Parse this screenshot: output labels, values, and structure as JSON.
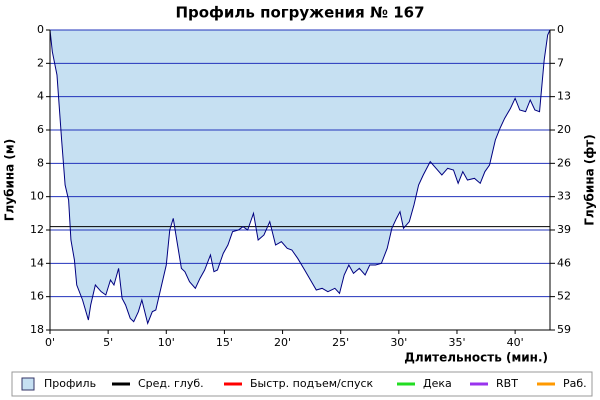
{
  "chart_data": {
    "type": "area",
    "title": "Профиль погружения № 167",
    "y_label": "Глубина (м)",
    "y2_label": "Глубина (фт)",
    "x_label": "Длительность (мин.)",
    "xlim": [
      0,
      43
    ],
    "xticks": [
      {
        "value": 0,
        "label": "0'"
      },
      {
        "value": 5,
        "label": "5'"
      },
      {
        "value": 10,
        "label": "10'"
      },
      {
        "value": 15,
        "label": "15'"
      },
      {
        "value": 20,
        "label": "20'"
      },
      {
        "value": 25,
        "label": "25'"
      },
      {
        "value": 30,
        "label": "30'"
      },
      {
        "value": 35,
        "label": "35'"
      },
      {
        "value": 40,
        "label": "40'"
      }
    ],
    "ylim": [
      0,
      18
    ],
    "yticks": [
      0,
      2,
      4,
      6,
      8,
      10,
      12,
      14,
      16,
      18
    ],
    "y_inverted": true,
    "y2lim": [
      0,
      59.06
    ],
    "y2ticks": [
      {
        "value": 0,
        "label": "0"
      },
      {
        "value": 6.56,
        "label": "7"
      },
      {
        "value": 13.12,
        "label": "13"
      },
      {
        "value": 19.69,
        "label": "20"
      },
      {
        "value": 26.25,
        "label": "26"
      },
      {
        "value": 32.81,
        "label": "33"
      },
      {
        "value": 39.37,
        "label": "39"
      },
      {
        "value": 45.93,
        "label": "46"
      },
      {
        "value": 52.49,
        "label": "52"
      },
      {
        "value": 59.06,
        "label": "59"
      }
    ],
    "grid": true,
    "grid_color": "#2233bb",
    "series": [
      {
        "name": "Профиль",
        "color": "#c6e0f2",
        "line_color": "#000080",
        "x": [
          0,
          0.2,
          0.6,
          1.0,
          1.3,
          1.6,
          1.8,
          2.1,
          2.3,
          2.8,
          3.3,
          3.5,
          3.9,
          4.4,
          4.8,
          5.2,
          5.5,
          5.9,
          6.2,
          6.5,
          6.9,
          7.2,
          7.6,
          7.9,
          8.4,
          8.8,
          9.1,
          9.5,
          10.0,
          10.3,
          10.6,
          10.9,
          11.3,
          11.6,
          12.0,
          12.5,
          12.9,
          13.3,
          13.8,
          14.1,
          14.4,
          14.9,
          15.3,
          15.7,
          16.2,
          16.6,
          17.0,
          17.5,
          17.9,
          18.4,
          18.9,
          19.4,
          19.9,
          20.4,
          20.8,
          21.3,
          21.9,
          22.4,
          22.9,
          23.4,
          23.9,
          24.5,
          24.9,
          25.3,
          25.7,
          26.1,
          26.6,
          27.1,
          27.5,
          28.0,
          28.5,
          29.0,
          29.4,
          29.8,
          30.1,
          30.4,
          30.9,
          31.3,
          31.7,
          32.1,
          32.7,
          33.2,
          33.7,
          34.2,
          34.7,
          35.1,
          35.5,
          35.9,
          36.5,
          37.0,
          37.4,
          37.8,
          38.3,
          38.7,
          39.1,
          39.6,
          40.0,
          40.4,
          40.9,
          41.3,
          41.7,
          42.1,
          42.5,
          42.8,
          43.0
        ],
        "values": [
          0,
          1.3,
          2.7,
          6.6,
          9.3,
          10.2,
          12.6,
          13.8,
          15.3,
          16.2,
          17.4,
          16.5,
          15.3,
          15.7,
          15.9,
          15.0,
          15.3,
          14.3,
          16.1,
          16.5,
          17.3,
          17.5,
          16.9,
          16.2,
          17.6,
          16.9,
          16.8,
          15.6,
          14.1,
          12.0,
          11.3,
          12.6,
          14.3,
          14.5,
          15.1,
          15.5,
          14.9,
          14.4,
          13.5,
          14.5,
          14.4,
          13.4,
          12.9,
          12.1,
          12.0,
          11.8,
          12.0,
          11.0,
          12.6,
          12.3,
          11.5,
          12.9,
          12.7,
          13.1,
          13.2,
          13.7,
          14.4,
          15.0,
          15.6,
          15.5,
          15.7,
          15.5,
          15.8,
          14.7,
          14.1,
          14.6,
          14.3,
          14.7,
          14.1,
          14.1,
          14.0,
          13.1,
          11.9,
          11.3,
          10.9,
          11.9,
          11.5,
          10.5,
          9.3,
          8.7,
          7.9,
          8.3,
          8.7,
          8.3,
          8.4,
          9.2,
          8.5,
          9.0,
          8.9,
          9.2,
          8.5,
          8.1,
          6.6,
          5.9,
          5.3,
          4.7,
          4.1,
          4.8,
          4.9,
          4.2,
          4.8,
          4.9,
          1.8,
          0.3,
          0
        ]
      }
    ],
    "legend_items": [
      {
        "name": "Сред. глуб.",
        "color": "#000000",
        "value": 11.8
      },
      {
        "name": "Быстр. подъем/спуск",
        "color": "#ff0000"
      },
      {
        "name": "Дека",
        "color": "#22dd22"
      },
      {
        "name": "RBT",
        "color": "#9933ee"
      },
      {
        "name": "Раб.",
        "color": "#ff9900"
      }
    ]
  }
}
